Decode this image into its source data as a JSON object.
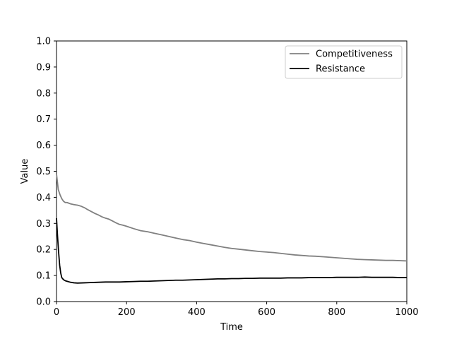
{
  "chart_data": {
    "type": "line",
    "title": "",
    "xlabel": "Time",
    "ylabel": "Value",
    "xlim": [
      0,
      1000
    ],
    "ylim": [
      0,
      1
    ],
    "xticks": [
      0,
      200,
      400,
      600,
      800,
      1000
    ],
    "yticks": [
      0.0,
      0.1,
      0.2,
      0.3,
      0.4,
      0.5,
      0.6,
      0.7,
      0.8,
      0.9,
      1.0
    ],
    "xtick_labels": [
      "0",
      "200",
      "400",
      "600",
      "800",
      "1000"
    ],
    "ytick_labels": [
      "0.0",
      "0.1",
      "0.2",
      "0.3",
      "0.4",
      "0.5",
      "0.6",
      "0.7",
      "0.8",
      "0.9",
      "1.0"
    ],
    "grid": false,
    "legend": "top-right",
    "series": [
      {
        "name": "Competitiveness",
        "color": "#808080",
        "points": [
          [
            0,
            0.49
          ],
          [
            5,
            0.43
          ],
          [
            10,
            0.41
          ],
          [
            15,
            0.395
          ],
          [
            20,
            0.385
          ],
          [
            25,
            0.38
          ],
          [
            30,
            0.38
          ],
          [
            40,
            0.375
          ],
          [
            50,
            0.372
          ],
          [
            60,
            0.37
          ],
          [
            70,
            0.366
          ],
          [
            80,
            0.36
          ],
          [
            90,
            0.352
          ],
          [
            100,
            0.345
          ],
          [
            110,
            0.338
          ],
          [
            120,
            0.332
          ],
          [
            130,
            0.325
          ],
          [
            140,
            0.32
          ],
          [
            150,
            0.316
          ],
          [
            160,
            0.309
          ],
          [
            170,
            0.302
          ],
          [
            180,
            0.296
          ],
          [
            190,
            0.293
          ],
          [
            200,
            0.289
          ],
          [
            220,
            0.28
          ],
          [
            240,
            0.272
          ],
          [
            260,
            0.268
          ],
          [
            280,
            0.262
          ],
          [
            300,
            0.256
          ],
          [
            320,
            0.25
          ],
          [
            340,
            0.244
          ],
          [
            360,
            0.238
          ],
          [
            380,
            0.234
          ],
          [
            400,
            0.228
          ],
          [
            420,
            0.223
          ],
          [
            440,
            0.218
          ],
          [
            460,
            0.213
          ],
          [
            480,
            0.208
          ],
          [
            500,
            0.204
          ],
          [
            520,
            0.201
          ],
          [
            540,
            0.198
          ],
          [
            560,
            0.195
          ],
          [
            580,
            0.192
          ],
          [
            600,
            0.19
          ],
          [
            620,
            0.188
          ],
          [
            640,
            0.185
          ],
          [
            660,
            0.182
          ],
          [
            680,
            0.179
          ],
          [
            700,
            0.177
          ],
          [
            720,
            0.175
          ],
          [
            740,
            0.174
          ],
          [
            760,
            0.172
          ],
          [
            780,
            0.17
          ],
          [
            800,
            0.168
          ],
          [
            820,
            0.166
          ],
          [
            840,
            0.164
          ],
          [
            860,
            0.162
          ],
          [
            880,
            0.161
          ],
          [
            900,
            0.16
          ],
          [
            920,
            0.159
          ],
          [
            940,
            0.158
          ],
          [
            960,
            0.158
          ],
          [
            980,
            0.157
          ],
          [
            1000,
            0.156
          ]
        ]
      },
      {
        "name": "Resistance",
        "color": "#000000",
        "points": [
          [
            0,
            0.32
          ],
          [
            3,
            0.25
          ],
          [
            6,
            0.19
          ],
          [
            9,
            0.14
          ],
          [
            12,
            0.11
          ],
          [
            15,
            0.092
          ],
          [
            20,
            0.084
          ],
          [
            25,
            0.08
          ],
          [
            30,
            0.078
          ],
          [
            40,
            0.074
          ],
          [
            50,
            0.072
          ],
          [
            60,
            0.071
          ],
          [
            80,
            0.072
          ],
          [
            100,
            0.073
          ],
          [
            120,
            0.074
          ],
          [
            140,
            0.075
          ],
          [
            160,
            0.075
          ],
          [
            180,
            0.075
          ],
          [
            200,
            0.076
          ],
          [
            220,
            0.077
          ],
          [
            240,
            0.078
          ],
          [
            260,
            0.078
          ],
          [
            280,
            0.079
          ],
          [
            300,
            0.08
          ],
          [
            320,
            0.081
          ],
          [
            340,
            0.082
          ],
          [
            360,
            0.082
          ],
          [
            380,
            0.083
          ],
          [
            400,
            0.084
          ],
          [
            420,
            0.085
          ],
          [
            440,
            0.086
          ],
          [
            460,
            0.087
          ],
          [
            480,
            0.087
          ],
          [
            500,
            0.088
          ],
          [
            520,
            0.088
          ],
          [
            540,
            0.089
          ],
          [
            560,
            0.089
          ],
          [
            580,
            0.09
          ],
          [
            600,
            0.09
          ],
          [
            620,
            0.09
          ],
          [
            640,
            0.09
          ],
          [
            660,
            0.091
          ],
          [
            680,
            0.091
          ],
          [
            700,
            0.091
          ],
          [
            720,
            0.092
          ],
          [
            740,
            0.092
          ],
          [
            760,
            0.092
          ],
          [
            780,
            0.092
          ],
          [
            800,
            0.093
          ],
          [
            820,
            0.093
          ],
          [
            840,
            0.093
          ],
          [
            860,
            0.093
          ],
          [
            880,
            0.094
          ],
          [
            900,
            0.093
          ],
          [
            920,
            0.093
          ],
          [
            940,
            0.093
          ],
          [
            960,
            0.093
          ],
          [
            980,
            0.092
          ],
          [
            1000,
            0.092
          ]
        ]
      }
    ]
  }
}
